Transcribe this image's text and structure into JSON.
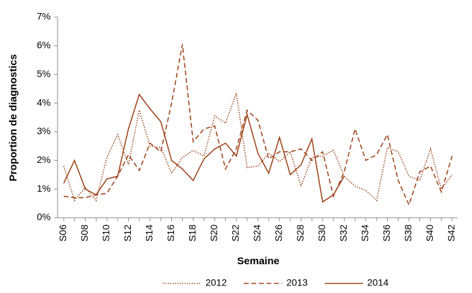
{
  "chart_data": {
    "type": "line",
    "y_label": "Proportion de diagnostics",
    "x_label": "Semaine",
    "categories": [
      "S06",
      null,
      "S08",
      null,
      "S10",
      null,
      "S12",
      null,
      "S14",
      null,
      "S16",
      null,
      "S18",
      null,
      "S20",
      null,
      "S22",
      null,
      "S24",
      null,
      "S26",
      null,
      "S28",
      null,
      "S30",
      null,
      "S32",
      null,
      "S34",
      null,
      "S36",
      null,
      "S38",
      null,
      "S40",
      null,
      "S42"
    ],
    "ylim": [
      0,
      7
    ],
    "yticks": [
      {
        "value": 0,
        "label": "0%"
      },
      {
        "value": 1,
        "label": "1%"
      },
      {
        "value": 2,
        "label": "2%"
      },
      {
        "value": 3,
        "label": "3%"
      },
      {
        "value": 4,
        "label": "4%"
      },
      {
        "value": 5,
        "label": "5%"
      },
      {
        "value": 6,
        "label": "6%"
      },
      {
        "value": 7,
        "label": "7%"
      }
    ],
    "grid": false,
    "legend": "bottom",
    "series": [
      {
        "name": "2012",
        "color": "#a0461e",
        "style": "dotted",
        "values": [
          1.8,
          0.6,
          1.05,
          0.6,
          2.1,
          2.9,
          1.85,
          3.75,
          2.5,
          2.45,
          1.55,
          2.1,
          2.35,
          2.15,
          3.55,
          3.3,
          4.35,
          1.75,
          1.8,
          2.25,
          1.95,
          2.3,
          1.1,
          2.1,
          2.15,
          2.35,
          1.45,
          1.1,
          0.95,
          0.6,
          2.45,
          2.3,
          1.45,
          1.3,
          2.4,
          1.0,
          1.5
        ]
      },
      {
        "name": "2013",
        "color": "#a0461e",
        "style": "dashed",
        "values": [
          0.75,
          0.7,
          0.7,
          0.8,
          0.85,
          1.45,
          2.2,
          1.65,
          2.6,
          2.3,
          4.0,
          6.05,
          2.65,
          3.1,
          3.2,
          1.7,
          2.4,
          3.75,
          3.4,
          2.05,
          2.3,
          2.3,
          2.4,
          2.0,
          2.3,
          0.75,
          1.6,
          3.1,
          2.0,
          2.2,
          2.9,
          1.3,
          0.45,
          1.6,
          1.8,
          0.9,
          2.15
        ]
      },
      {
        "name": "2014",
        "color": "#a0461e",
        "style": "solid",
        "values": [
          1.2,
          2.0,
          1.0,
          0.8,
          1.35,
          1.45,
          3.1,
          4.3,
          3.8,
          3.35,
          2.0,
          1.7,
          1.3,
          2.05,
          2.4,
          2.6,
          2.15,
          3.6,
          2.25,
          1.55,
          2.8,
          1.5,
          1.85,
          2.75,
          0.55,
          0.8,
          1.45,
          null,
          null,
          null,
          null,
          null,
          null,
          null,
          null,
          null,
          null
        ]
      }
    ]
  }
}
